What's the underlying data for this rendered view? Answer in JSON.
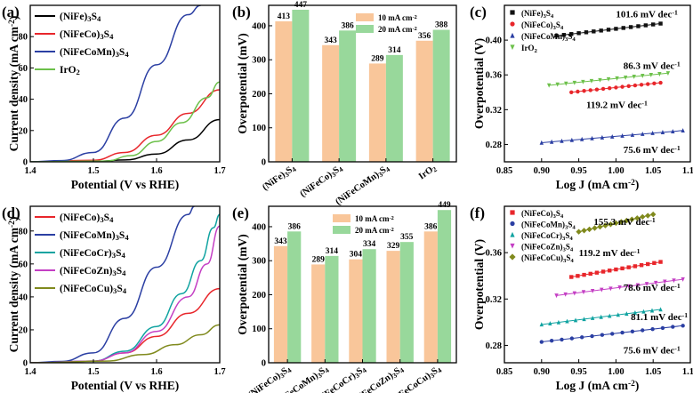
{
  "chart_data": [
    {
      "panel": "(a)",
      "type": "line",
      "xlabel": "Potential (V vs RHE)",
      "ylabel": "Current density (mA cm⁻²)",
      "xlim": [
        1.4,
        1.7
      ],
      "ylim": [
        0,
        100
      ],
      "xticks": [
        "1.4",
        "1.5",
        "1.6",
        "1.7"
      ],
      "yticks": [
        "0",
        "20",
        "40",
        "60",
        "80"
      ],
      "legend_position": "top-left",
      "series": [
        {
          "name": "(NiFe)₃S₄",
          "color": "#000000",
          "x": [
            1.4,
            1.5,
            1.55,
            1.6,
            1.65,
            1.7
          ],
          "y": [
            0,
            0.2,
            1.2,
            5,
            14,
            27
          ]
        },
        {
          "name": "(NiFeCo)₃S₄",
          "color": "#e8262b",
          "x": [
            1.4,
            1.5,
            1.55,
            1.6,
            1.65,
            1.7
          ],
          "y": [
            0,
            1,
            6,
            17,
            31,
            46
          ]
        },
        {
          "name": "(NiFeCoMn)₃S₄",
          "color": "#2b3fa3",
          "x": [
            1.4,
            1.45,
            1.5,
            1.55,
            1.6,
            1.65,
            1.67
          ],
          "y": [
            0,
            0.8,
            6,
            28,
            62,
            94,
            100
          ]
        },
        {
          "name": "IrO₂",
          "color": "#6cc04a",
          "x": [
            1.4,
            1.52,
            1.56,
            1.6,
            1.64,
            1.68,
            1.7
          ],
          "y": [
            0,
            0.5,
            4,
            13,
            25,
            41,
            51
          ]
        }
      ]
    },
    {
      "panel": "(b)",
      "type": "bar",
      "ylabel": "Overpotential (mV)",
      "ylim": [
        0,
        460
      ],
      "yticks": [
        "0",
        "100",
        "200",
        "300",
        "400"
      ],
      "categories": [
        "(NiFe)₃S₄",
        "(NiFeCo)₃S₄",
        "(NiFeCoMn)₃S₄",
        "IrO₂"
      ],
      "legend_position": "top-right",
      "series": [
        {
          "name": "10 mA cm⁻²",
          "color": "#f9c69a",
          "values": [
            413,
            343,
            289,
            356
          ],
          "labels": [
            "413",
            "343",
            "289",
            "356"
          ]
        },
        {
          "name": "20 mA cm⁻²",
          "color": "#98d89b",
          "values": [
            447,
            386,
            314,
            388
          ],
          "labels": [
            "447",
            "386",
            "314",
            "388"
          ]
        }
      ]
    },
    {
      "panel": "(c)",
      "type": "scatter",
      "xlabel": "Log J (mA cm⁻²)",
      "ylabel": "Overpotential (V)",
      "xlim": [
        0.85,
        1.1
      ],
      "ylim": [
        0.26,
        0.44
      ],
      "xticks": [
        "0.85",
        "0.90",
        "0.95",
        "1.00",
        "1.05",
        "1.10"
      ],
      "yticks": [
        "0.28",
        "0.32",
        "0.36",
        "0.40"
      ],
      "legend_position": "top-left",
      "series": [
        {
          "name": "(NiFe)₃S₄",
          "color": "#111111",
          "marker": "square",
          "x": [
            0.92,
            1.06
          ],
          "y": [
            0.405,
            0.419
          ],
          "slope_label": "101.6 mV dec⁻¹"
        },
        {
          "name": "(NiFeCo)₃S₄",
          "color": "#e8262b",
          "marker": "circle",
          "x": [
            0.94,
            1.06
          ],
          "y": [
            0.34,
            0.351
          ],
          "slope_label": "119.2 mV dec⁻¹"
        },
        {
          "name": "(NiFeCoMn)₃S₄",
          "color": "#2b3fa3",
          "marker": "triangle",
          "x": [
            0.9,
            1.09
          ],
          "y": [
            0.282,
            0.296
          ],
          "slope_label": "75.6 mV dec⁻¹"
        },
        {
          "name": "IrO₂",
          "color": "#6cc04a",
          "marker": "triangle-down",
          "x": [
            0.91,
            1.07
          ],
          "y": [
            0.348,
            0.362
          ],
          "slope_label": "86.3 mV dec⁻¹"
        }
      ]
    },
    {
      "panel": "(d)",
      "type": "line",
      "xlabel": "Potential (V vs RHE)",
      "ylabel": "Current density (mA cm⁻²)",
      "xlim": [
        1.4,
        1.7
      ],
      "ylim": [
        0,
        95
      ],
      "xticks": [
        "1.4",
        "1.5",
        "1.6",
        "1.7"
      ],
      "yticks": [
        "0",
        "20",
        "40",
        "60",
        "80"
      ],
      "legend_position": "top-left",
      "series": [
        {
          "name": "(NiFeCo)₃S₄",
          "color": "#e8262b",
          "x": [
            1.4,
            1.5,
            1.55,
            1.6,
            1.65,
            1.7
          ],
          "y": [
            0,
            1,
            6,
            16,
            30,
            45
          ]
        },
        {
          "name": "(NiFeCoMn)₃S₄",
          "color": "#2b3fa3",
          "x": [
            1.4,
            1.45,
            1.5,
            1.55,
            1.6,
            1.65,
            1.66
          ],
          "y": [
            0,
            0.8,
            6,
            27,
            58,
            90,
            95
          ]
        },
        {
          "name": "(NiFeCoCr)₃S₄",
          "color": "#10a3a1",
          "x": [
            1.4,
            1.5,
            1.55,
            1.6,
            1.64,
            1.67,
            1.69,
            1.7
          ],
          "y": [
            0,
            1,
            7,
            22,
            42,
            62,
            82,
            90
          ]
        },
        {
          "name": "(NiFeCoZn)₃S₄",
          "color": "#c43fc4",
          "x": [
            1.4,
            1.5,
            1.55,
            1.6,
            1.65,
            1.68,
            1.7
          ],
          "y": [
            0,
            1,
            6,
            19,
            40,
            60,
            83
          ]
        },
        {
          "name": "(NiFeCoCu)₃S₄",
          "color": "#808a1d",
          "x": [
            1.4,
            1.52,
            1.58,
            1.63,
            1.67,
            1.7
          ],
          "y": [
            0,
            1,
            5,
            11,
            17,
            23
          ]
        }
      ]
    },
    {
      "panel": "(e)",
      "type": "bar",
      "ylabel": "Overpotential (mV)",
      "ylim": [
        0,
        460
      ],
      "yticks": [
        "0",
        "100",
        "200",
        "300",
        "400"
      ],
      "categories": [
        "(NiFeCo)₃S₄",
        "(NiFeCoMn)₃S₄",
        "(NiFeCoCr)₃S₄",
        "(NiFeCoZn)₃S₄",
        "(NiFeCoCu)₃S₄"
      ],
      "legend_position": "top-left",
      "series": [
        {
          "name": "10 mA cm⁻²",
          "color": "#f9c69a",
          "values": [
            343,
            289,
            304,
            329,
            386
          ],
          "labels": [
            "343",
            "289",
            "304",
            "329",
            "386"
          ]
        },
        {
          "name": "20 mA cm⁻²",
          "color": "#98d89b",
          "values": [
            386,
            314,
            334,
            355,
            449
          ],
          "labels": [
            "386",
            "314",
            "334",
            "355",
            "449"
          ]
        }
      ]
    },
    {
      "panel": "(f)",
      "type": "scatter",
      "xlabel": "Log J (mA cm⁻²)",
      "ylabel": "Overpotential (V)",
      "xlim": [
        0.85,
        1.1
      ],
      "ylim": [
        0.265,
        0.4
      ],
      "xticks": [
        "0.85",
        "0.90",
        "0.95",
        "1.00",
        "1.05",
        "1.10"
      ],
      "yticks": [
        "0.28",
        "0.32",
        "0.36"
      ],
      "legend_position": "top-left",
      "series": [
        {
          "name": "(NiFeCo)₃S₄",
          "color": "#e8262b",
          "marker": "square",
          "x": [
            0.94,
            1.06
          ],
          "y": [
            0.339,
            0.352
          ],
          "slope_label": "119.2 mV dec⁻¹"
        },
        {
          "name": "(NiFeCoMn)₃S₄",
          "color": "#2b3fa3",
          "marker": "circle",
          "x": [
            0.9,
            1.09
          ],
          "y": [
            0.283,
            0.297
          ],
          "slope_label": "75.6 mV dec⁻¹"
        },
        {
          "name": "(NiFeCoCr)₃S₄",
          "color": "#10a3a1",
          "marker": "triangle",
          "x": [
            0.9,
            1.06
          ],
          "y": [
            0.298,
            0.311
          ],
          "slope_label": "81.1 mV dec⁻¹"
        },
        {
          "name": "(NiFeCoZn)₃S₄",
          "color": "#c43fc4",
          "marker": "triangle-down",
          "x": [
            0.92,
            1.09
          ],
          "y": [
            0.323,
            0.337
          ],
          "slope_label": "78.6 mV dec⁻¹"
        },
        {
          "name": "(NiFeCoCu)₃S₄",
          "color": "#808a1d",
          "marker": "diamond",
          "x": [
            0.95,
            1.05
          ],
          "y": [
            0.378,
            0.393
          ],
          "slope_label": "155.3 mV dec⁻¹"
        }
      ]
    }
  ]
}
